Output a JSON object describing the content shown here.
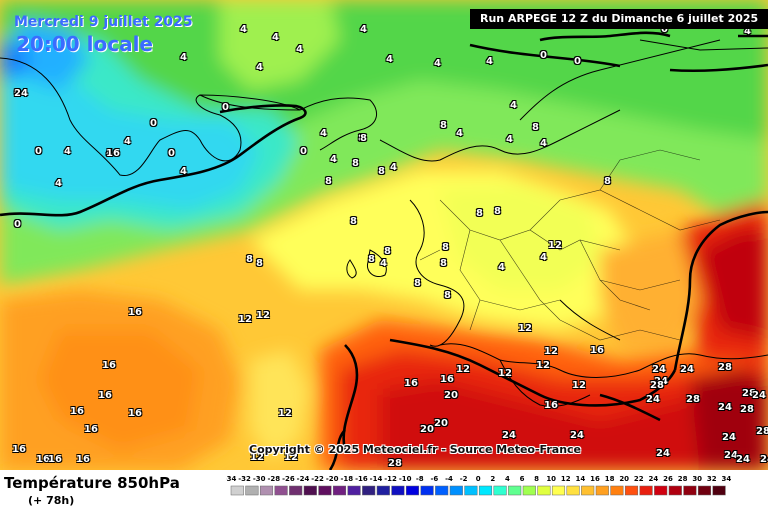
{
  "header": {
    "date": "Mercredi 9 juillet 2025",
    "time": "20:00 locale",
    "run": "Run ARPEGE 12 Z du Dimanche 6 juillet 2025"
  },
  "copyright": "Copyright © 2025 Meteociel.fr - Source Meteo-France",
  "footer": {
    "parameter": "Température 850hPa",
    "lead": "(+ 78h)"
  },
  "scale": {
    "labels": [
      "-34",
      "-32",
      "-30",
      "-28",
      "-26",
      "-24",
      "-22",
      "-20",
      "-18",
      "-16",
      "-14",
      "-12",
      "-10",
      "-8",
      "-6",
      "-4",
      "-2",
      "0",
      "2",
      "4",
      "6",
      "8",
      "10",
      "12",
      "14",
      "16",
      "18",
      "20",
      "22",
      "24",
      "26",
      "28",
      "30",
      "32",
      "34"
    ],
    "colors": [
      "#d0d0d0",
      "#b0b0b0",
      "#b090b0",
      "#905090",
      "#703070",
      "#501050",
      "#601060",
      "#702080",
      "#5020a0",
      "#302080",
      "#2020a0",
      "#1010c0",
      "#0000e0",
      "#0030f0",
      "#0060ff",
      "#0090ff",
      "#00c0ff",
      "#00e8ff",
      "#30ffd0",
      "#60ff90",
      "#a0ff50",
      "#e0ff40",
      "#ffff50",
      "#ffe040",
      "#ffc030",
      "#ffa020",
      "#ff8010",
      "#ff5010",
      "#e82010",
      "#d00010",
      "#b00010",
      "#900010",
      "#700010",
      "#500010"
    ]
  },
  "map_labels": [
    "0",
    "4",
    "4",
    "4",
    "4",
    "0",
    "0",
    "0",
    "4",
    "8",
    "4",
    "4",
    "4",
    "4",
    "4",
    "0",
    "4",
    "4",
    "0",
    "0",
    "4",
    "4",
    "4",
    "8",
    "0",
    "0",
    "0",
    "4",
    "4",
    "4",
    "4",
    "4",
    "4",
    "8",
    "8",
    "8",
    "8",
    "4",
    "8",
    "8",
    "8",
    "4",
    "4",
    "8",
    "12",
    "8",
    "8",
    "8",
    "4",
    "8",
    "8",
    "8",
    "8",
    "8",
    "8",
    "12",
    "12",
    "12",
    "12",
    "12",
    "12",
    "16",
    "16",
    "16",
    "16",
    "16",
    "16",
    "16",
    "16",
    "16",
    "16",
    "16",
    "12",
    "12",
    "12",
    "12",
    "12",
    "16",
    "16",
    "16",
    "20",
    "20",
    "20",
    "24",
    "24",
    "24",
    "28",
    "28",
    "28",
    "28",
    "24",
    "24",
    "24",
    "24",
    "24",
    "24",
    "28",
    "24",
    "24",
    "24",
    "24",
    "28",
    "28",
    "24",
    "16"
  ],
  "map_label_color": "#ffffff"
}
